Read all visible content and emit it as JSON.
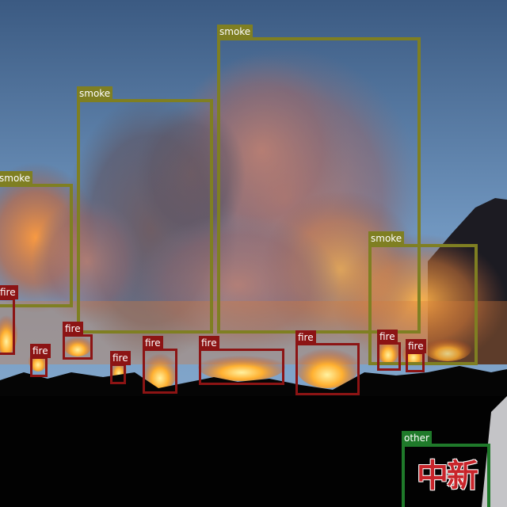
{
  "labels": {
    "smoke": "smoke",
    "fire": "fire",
    "other": "other"
  },
  "watermark": {
    "text": "中新网"
  },
  "colors": {
    "smoke_box": "#7f7f22",
    "fire_box": "#8c1414",
    "other_box": "#1f7a2a",
    "sky_top": "#3f5f86",
    "sky_bottom": "#7fa0c4",
    "smoke_glow": "#c5764a",
    "flame": "#ffb030"
  }
}
